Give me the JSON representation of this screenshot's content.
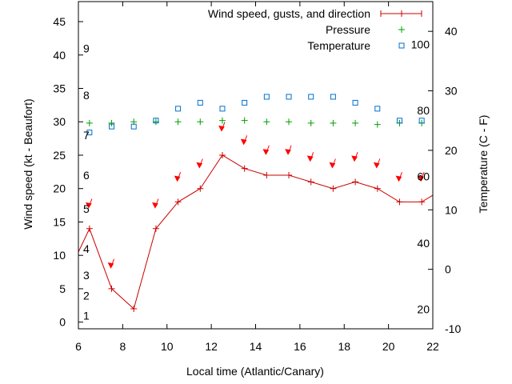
{
  "chart_data": {
    "type": "line",
    "xlabel": "Local time (Atlantic/Canary)",
    "ylabel_left": "Wind speed (kt - Beaufort)",
    "ylabel_right": "Temperature (C - F)",
    "x_range": [
      6,
      22
    ],
    "y_left_range": [
      -1,
      48
    ],
    "y_right_range": [
      -10,
      45
    ],
    "x_ticks": [
      6,
      8,
      10,
      12,
      14,
      16,
      18,
      20,
      22
    ],
    "y_left_ticks": [
      0,
      5,
      10,
      15,
      20,
      25,
      30,
      35,
      40,
      45
    ],
    "y_right_ticks_celsius": [
      -10,
      0,
      10,
      20,
      30,
      40
    ],
    "beaufort_labels": [
      {
        "label": "1",
        "kt": 1
      },
      {
        "label": "2",
        "kt": 4
      },
      {
        "label": "3",
        "kt": 7
      },
      {
        "label": "4",
        "kt": 11
      },
      {
        "label": "5",
        "kt": 17
      },
      {
        "label": "6",
        "kt": 22
      },
      {
        "label": "7",
        "kt": 28
      },
      {
        "label": "8",
        "kt": 34
      },
      {
        "label": "9",
        "kt": 41
      }
    ],
    "fahrenheit_labels": [
      {
        "label": "20",
        "celsius": -6.7
      },
      {
        "label": "40",
        "celsius": 4.4
      },
      {
        "label": "60",
        "celsius": 15.6
      },
      {
        "label": "80",
        "celsius": 26.7
      },
      {
        "label": "100",
        "celsius": 37.8
      }
    ],
    "legend_position": "top-right",
    "colors": {
      "wind": "#cc0000",
      "gust_arrow": "#ff0000",
      "pressure": "#00a000",
      "temperature": "#0070cc",
      "axis": "#000000"
    },
    "series": [
      {
        "name": "Wind speed, gusts, and direction",
        "axis": "left",
        "x": [
          6,
          6.5,
          7.5,
          8.5,
          9.5,
          10.5,
          11.5,
          12.5,
          13.5,
          14.5,
          15.5,
          16.5,
          17.5,
          18.5,
          19.5,
          20.5,
          21.5,
          22
        ],
        "y": [
          10.5,
          14,
          5,
          2,
          14,
          18,
          20,
          25,
          23,
          22,
          22,
          21,
          20,
          21,
          20,
          18,
          18,
          19
        ]
      },
      {
        "name": "Pressure",
        "axis": "left",
        "x": [
          6.5,
          7.5,
          8.5,
          9.5,
          10.5,
          11.5,
          12.5,
          13.5,
          14.5,
          15.5,
          16.5,
          17.5,
          18.5,
          19.5,
          20.5,
          21.5
        ],
        "y": [
          29.8,
          29.8,
          30.0,
          30.0,
          30.0,
          30.0,
          30.2,
          30.2,
          30.0,
          30.0,
          29.8,
          29.8,
          29.8,
          29.6,
          29.8,
          29.8
        ]
      },
      {
        "name": "Temperature",
        "axis": "right",
        "x": [
          6.5,
          7.5,
          8.5,
          9.5,
          10.5,
          11.5,
          12.5,
          13.5,
          14.5,
          15.5,
          16.5,
          17.5,
          18.5,
          19.5,
          20.5,
          21.5
        ],
        "y": [
          23,
          24,
          24,
          25,
          27,
          28,
          27,
          28,
          29,
          29,
          29,
          29,
          28,
          27,
          25,
          25
        ]
      }
    ],
    "gusts": {
      "x": [
        6.5,
        7.5,
        9.5,
        10.5,
        11.5,
        12.5,
        13.5,
        14.5,
        15.5,
        16.5,
        17.5,
        18.5,
        19.5,
        20.5,
        21.5
      ],
      "y": [
        17.5,
        8.5,
        17.5,
        21.5,
        23.5,
        29,
        27,
        25.5,
        25.5,
        24.5,
        23.5,
        24.5,
        23.5,
        21.5,
        21.5
      ]
    }
  }
}
